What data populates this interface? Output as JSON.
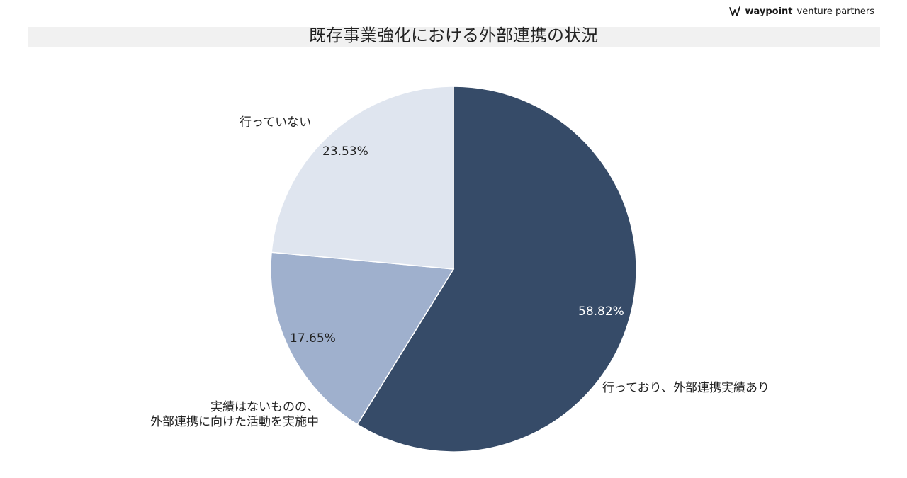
{
  "brand": {
    "name": "waypoint",
    "tagline": "venture partners",
    "icon": "waypoint-logo-icon"
  },
  "chart_data": {
    "type": "pie",
    "title": "既存事業強化における外部連携の状況",
    "start_angle_deg": 0,
    "direction": "clockwise",
    "slices": [
      {
        "label": "行っており、外部連携実績あり",
        "value": 58.82,
        "value_label": "58.82%",
        "color": "#364b68",
        "label_color": "#ffffff"
      },
      {
        "label": "実績はないものの、\n外部連携に向けた活動を実施中",
        "value": 17.65,
        "value_label": "17.65%",
        "color": "#9fb0cd",
        "label_color": "#222222"
      },
      {
        "label": "行っていない",
        "value": 23.53,
        "value_label": "23.53%",
        "color": "#dfe5ef",
        "label_color": "#222222"
      }
    ]
  }
}
